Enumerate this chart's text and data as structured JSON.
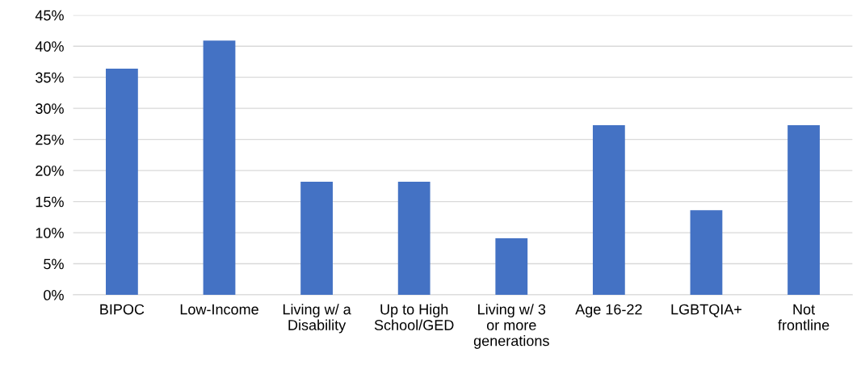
{
  "chart_data": {
    "type": "bar",
    "categories": [
      "BIPOC",
      "Low-Income",
      "Living w/ a\nDisability",
      "Up to High\nSchool/GED",
      "Living w/ 3\nor more\ngenerations",
      "Age 16-22",
      "LGBTQIA+",
      "Not\nfrontline"
    ],
    "values": [
      36.4,
      40.9,
      18.2,
      18.2,
      9.1,
      27.3,
      13.6,
      27.3
    ],
    "color": "#4472c4",
    "ylim": [
      0,
      45
    ],
    "yticks": [
      {
        "value": 0,
        "label": "0%"
      },
      {
        "value": 5,
        "label": "5%"
      },
      {
        "value": 10,
        "label": "10%"
      },
      {
        "value": 15,
        "label": "15%"
      },
      {
        "value": 20,
        "label": "20%"
      },
      {
        "value": 25,
        "label": "25%"
      },
      {
        "value": 30,
        "label": "30%"
      },
      {
        "value": 35,
        "label": "35%"
      },
      {
        "value": 40,
        "label": "40%"
      },
      {
        "value": 45,
        "label": "45%"
      }
    ],
    "grid": "y"
  }
}
